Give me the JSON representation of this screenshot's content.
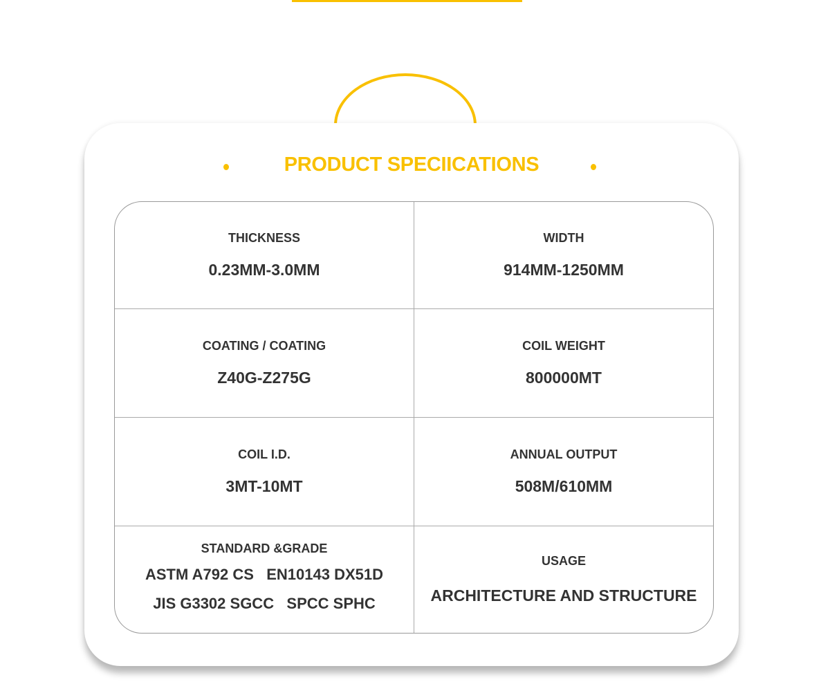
{
  "title": "PRODUCT SPECIICATIONS",
  "accent_color": "#F9C000",
  "specs": [
    {
      "label": "THICKNESS",
      "value": "0.23MM-3.0MM"
    },
    {
      "label": "WIDTH",
      "value": "914MM-1250MM"
    },
    {
      "label": "COATING / COATING",
      "value": "Z40G-Z275G"
    },
    {
      "label": "COIL WEIGHT",
      "value": "800000MT"
    },
    {
      "label": "COIL I.D.",
      "value": "3MT-10MT"
    },
    {
      "label": "ANNUAL OUTPUT",
      "value": "508M/610MM"
    },
    {
      "label": "STANDARD &GRADE",
      "lines": [
        "ASTM A792 CS   EN10143 DX51D",
        "JIS G3302 SGCC   SPCC SPHC"
      ]
    },
    {
      "label": "USAGE",
      "value": "ARCHITECTURE AND STRUCTURE"
    }
  ]
}
